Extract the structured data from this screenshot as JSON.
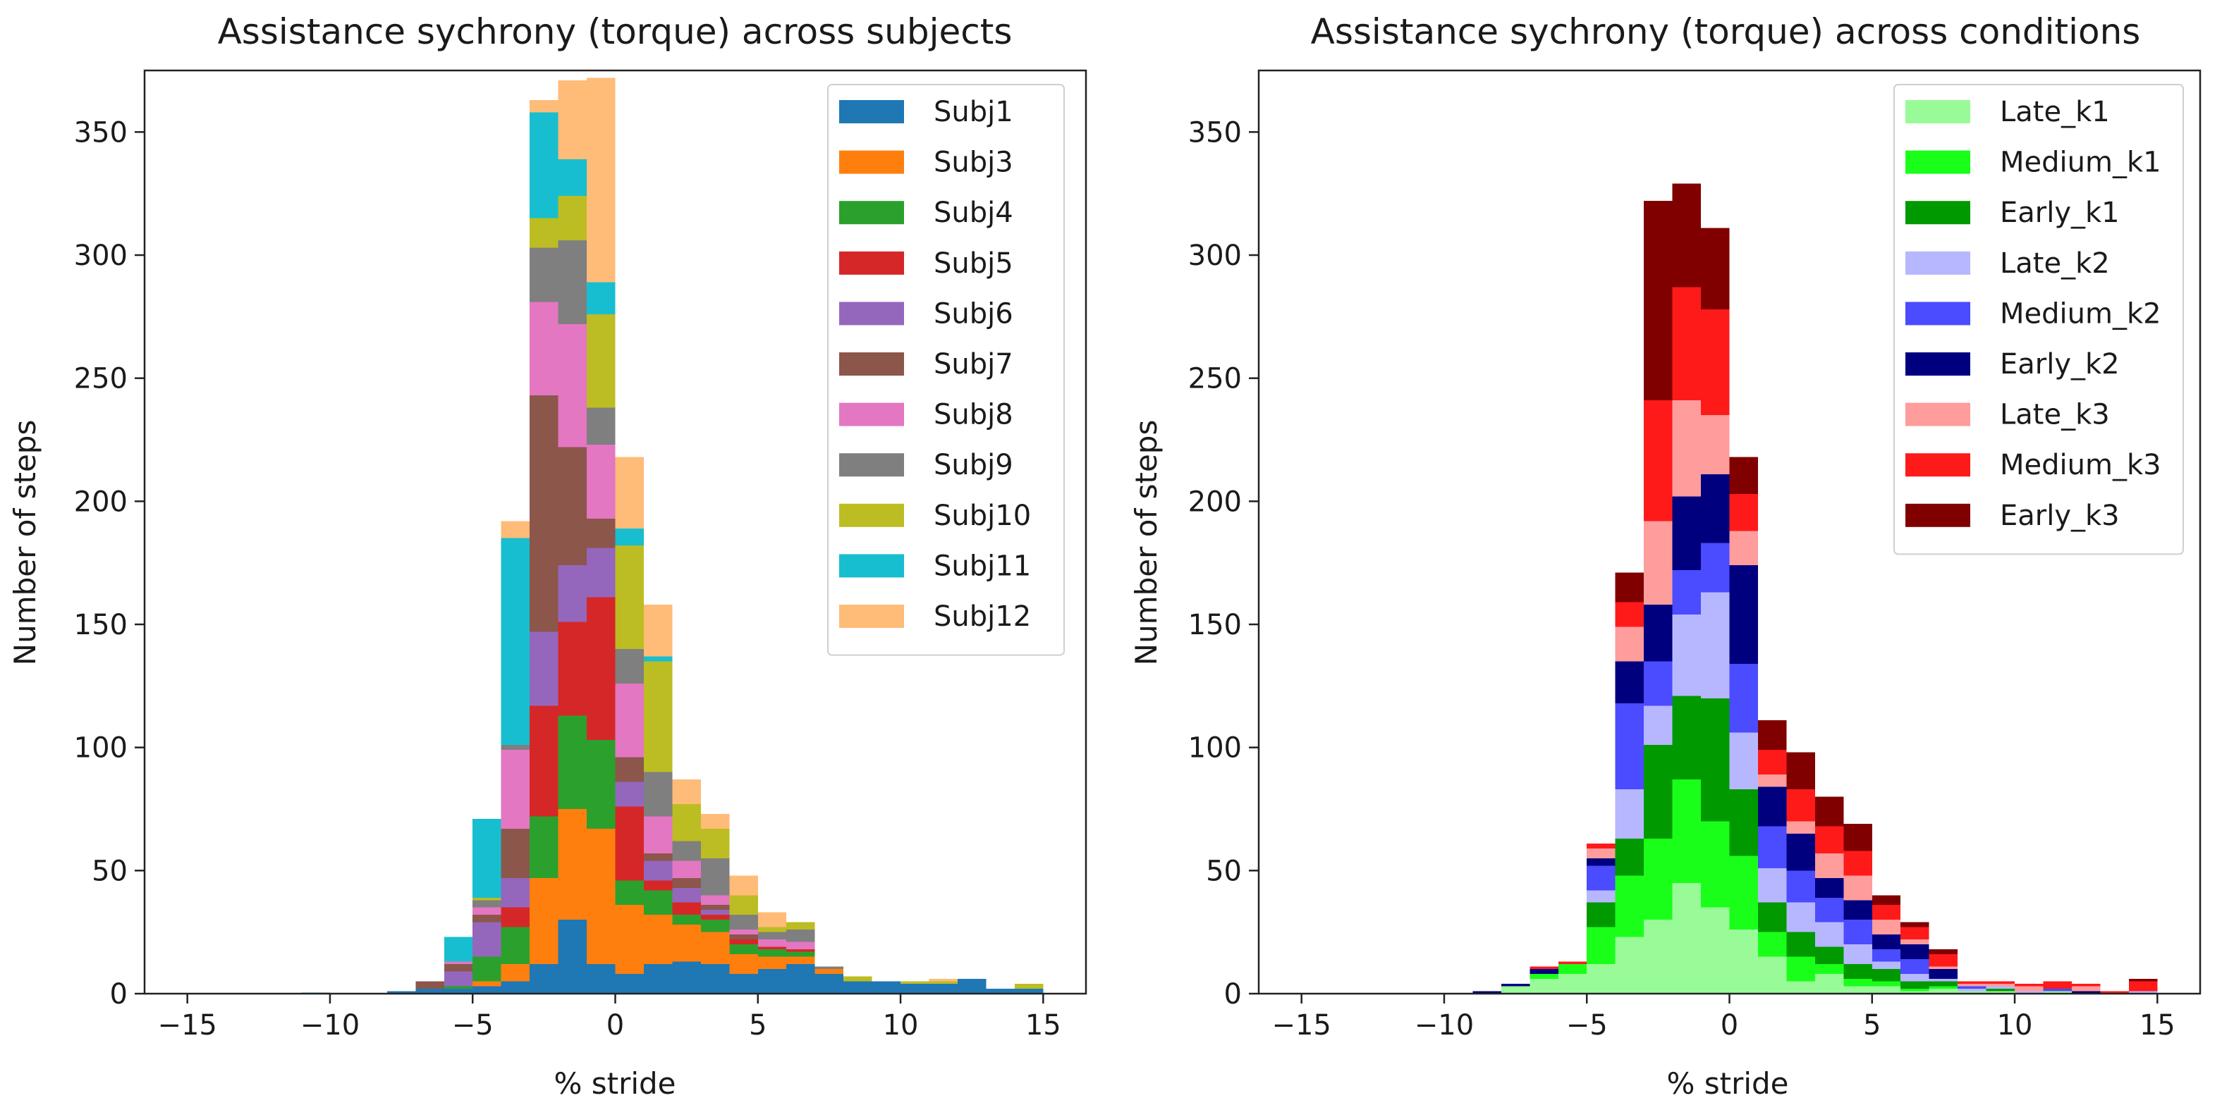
{
  "chart_data": [
    {
      "type": "bar",
      "stacked": true,
      "title": "Assistance sychrony (torque) across subjects",
      "xlabel": "% stride",
      "ylabel": "Number of steps",
      "xlim": [
        -16.5,
        16.5
      ],
      "ylim": [
        0,
        375
      ],
      "xticks": [
        -15,
        -10,
        -5,
        0,
        5,
        10,
        15
      ],
      "yticks": [
        0,
        50,
        100,
        150,
        200,
        250,
        300,
        350
      ],
      "legend_position": "top-right",
      "bin_width": 1,
      "bin_left_edges": [
        -15,
        -14,
        -13,
        -12,
        -11,
        -10,
        -9,
        -8,
        -7,
        -6,
        -5,
        -4,
        -3,
        -2,
        -1,
        0,
        1,
        2,
        3,
        4,
        5,
        6,
        7,
        8,
        9,
        10,
        11,
        12,
        13,
        14
      ],
      "series": [
        {
          "name": "Subj1",
          "color": "#1f77b4",
          "values": [
            0,
            0,
            0,
            0,
            0.5,
            0,
            0,
            1,
            2,
            2,
            3,
            5,
            12,
            30,
            12,
            8,
            12,
            13,
            12,
            8,
            10,
            12,
            8,
            5,
            5,
            4,
            4,
            6,
            2,
            2
          ]
        },
        {
          "name": "Subj3",
          "color": "#ff7f0e",
          "values": [
            0,
            0,
            0,
            0,
            0,
            0,
            0,
            0,
            0,
            0,
            2,
            7,
            35,
            45,
            55,
            28,
            20,
            15,
            13,
            8,
            5,
            3,
            2,
            0,
            0,
            0,
            0,
            0,
            0,
            0
          ]
        },
        {
          "name": "Subj4",
          "color": "#2ca02c",
          "values": [
            0,
            0,
            0,
            0,
            0,
            0,
            0,
            0,
            0,
            1,
            10,
            15,
            25,
            38,
            36,
            10,
            10,
            4,
            5,
            4,
            3,
            2,
            0,
            0,
            0,
            0,
            0,
            0,
            0,
            0
          ]
        },
        {
          "name": "Subj5",
          "color": "#d62728",
          "values": [
            0,
            0,
            0,
            0,
            0,
            0,
            0,
            0,
            0,
            0,
            0,
            8,
            45,
            38,
            58,
            30,
            4,
            5,
            2,
            2,
            1,
            1,
            0,
            0,
            0,
            0,
            0,
            0,
            0,
            0
          ]
        },
        {
          "name": "Subj6",
          "color": "#9467bd",
          "values": [
            0,
            0,
            0,
            0,
            0,
            0,
            0,
            0,
            0,
            6,
            14,
            12,
            30,
            23,
            20,
            10,
            8,
            6,
            2,
            0,
            0,
            0,
            0,
            0,
            0,
            0,
            0,
            0,
            0,
            0
          ]
        },
        {
          "name": "Subj7",
          "color": "#8c564b",
          "values": [
            0,
            0,
            0,
            0,
            0,
            0,
            0,
            0,
            3,
            3,
            3,
            20,
            96,
            48,
            12,
            10,
            3,
            4,
            2,
            2,
            0,
            0,
            0,
            0,
            0,
            0,
            0,
            0,
            0,
            0
          ]
        },
        {
          "name": "Subj8",
          "color": "#e377c2",
          "values": [
            0,
            0,
            0,
            0,
            0,
            0,
            0,
            0,
            0,
            1,
            3,
            32,
            38,
            50,
            30,
            30,
            15,
            7,
            4,
            2,
            3,
            3,
            0,
            0,
            0,
            0,
            0,
            0,
            0,
            0
          ]
        },
        {
          "name": "Subj9",
          "color": "#7f7f7f",
          "values": [
            0,
            0,
            0,
            0,
            0,
            0,
            0,
            0,
            0,
            0,
            3,
            2,
            22,
            34,
            15,
            14,
            18,
            8,
            15,
            6,
            3,
            5,
            1,
            0,
            0,
            0,
            0,
            0,
            0,
            0
          ]
        },
        {
          "name": "Subj10",
          "color": "#bcbd22",
          "values": [
            0,
            0,
            0,
            0,
            0,
            0,
            0,
            0,
            0,
            0,
            1,
            0,
            12,
            18,
            38,
            42,
            45,
            15,
            12,
            8,
            2,
            3,
            0,
            2,
            0,
            1,
            1,
            0,
            0,
            2
          ]
        },
        {
          "name": "Subj11",
          "color": "#17becf",
          "values": [
            0,
            0,
            0,
            0,
            0,
            0,
            0,
            0,
            0,
            10,
            32,
            84,
            43,
            15,
            13,
            7,
            2,
            0,
            0,
            0,
            0,
            0,
            0,
            0,
            0,
            0,
            0,
            0,
            0,
            0
          ]
        },
        {
          "name": "Subj12",
          "color": "#ffbb78",
          "values": [
            0,
            0,
            0,
            0,
            0,
            0,
            0,
            0,
            0,
            0,
            0,
            7,
            5,
            32,
            83,
            29,
            21,
            10,
            6,
            8,
            6,
            0,
            0,
            0,
            0,
            0,
            1,
            0,
            0,
            0
          ]
        }
      ]
    },
    {
      "type": "bar",
      "stacked": true,
      "title": "Assistance sychrony (torque) across conditions",
      "xlabel": "% stride",
      "ylabel": "Number of steps",
      "xlim": [
        -16.5,
        16.5
      ],
      "ylim": [
        0,
        375
      ],
      "xticks": [
        -15,
        -10,
        -5,
        0,
        5,
        10,
        15
      ],
      "yticks": [
        0,
        50,
        100,
        150,
        200,
        250,
        300,
        350
      ],
      "legend_position": "top-right",
      "bin_width": 1,
      "bin_left_edges": [
        -15,
        -14,
        -13,
        -12,
        -11,
        -10,
        -9,
        -8,
        -7,
        -6,
        -5,
        -4,
        -3,
        -2,
        -1,
        0,
        1,
        2,
        3,
        4,
        5,
        6,
        7,
        8,
        9,
        10,
        11,
        12,
        13,
        14
      ],
      "series": [
        {
          "name": "Late_k1",
          "color": "#98fb98",
          "values": [
            0,
            0,
            0,
            0,
            0,
            0,
            0,
            3,
            6,
            8,
            12,
            23,
            30,
            45,
            35,
            26,
            15,
            5,
            8,
            3,
            3,
            1,
            2,
            1,
            1,
            0,
            1,
            0,
            0,
            0
          ]
        },
        {
          "name": "Medium_k1",
          "color": "#1aff1a",
          "values": [
            0,
            0,
            0,
            0,
            0,
            0,
            0,
            0,
            2,
            4,
            15,
            25,
            33,
            42,
            35,
            30,
            10,
            10,
            4,
            3,
            2,
            1,
            1,
            0,
            0,
            0,
            0,
            0,
            0,
            0
          ]
        },
        {
          "name": "Early_k1",
          "color": "#009900",
          "values": [
            0,
            0,
            0,
            0,
            0,
            0,
            0,
            0,
            0,
            0,
            10,
            15,
            38,
            34,
            50,
            27,
            12,
            10,
            7,
            6,
            5,
            3,
            2,
            0,
            1,
            0,
            0,
            0,
            0,
            0
          ]
        },
        {
          "name": "Late_k2",
          "color": "#b7b7ff",
          "values": [
            0,
            0,
            0,
            0,
            0,
            0,
            0,
            0,
            0,
            0,
            5,
            20,
            16,
            33,
            43,
            23,
            14,
            12,
            10,
            8,
            3,
            3,
            1,
            1,
            1,
            1,
            0,
            0,
            0,
            1
          ]
        },
        {
          "name": "Medium_k2",
          "color": "#4b4bff",
          "values": [
            0,
            0,
            0,
            0,
            0,
            0,
            0,
            0,
            0,
            0,
            10,
            35,
            18,
            18,
            20,
            28,
            17,
            13,
            10,
            10,
            5,
            6,
            0,
            1,
            0,
            0,
            1,
            0,
            0,
            0
          ]
        },
        {
          "name": "Early_k2",
          "color": "#00007f",
          "values": [
            0,
            0,
            0,
            0,
            0,
            0,
            1,
            1,
            2,
            0,
            3,
            17,
            23,
            30,
            28,
            40,
            16,
            15,
            8,
            8,
            6,
            6,
            4,
            0,
            0,
            0,
            0,
            1,
            0,
            0
          ]
        },
        {
          "name": "Late_k3",
          "color": "#ff9c9c",
          "values": [
            0,
            0,
            0,
            0,
            0,
            0,
            0,
            0,
            0,
            0,
            4,
            14,
            34,
            39,
            24,
            14,
            5,
            5,
            10,
            10,
            6,
            2,
            1,
            1,
            1,
            2,
            0,
            2,
            0,
            0
          ]
        },
        {
          "name": "Medium_k3",
          "color": "#ff1a1a",
          "values": [
            0,
            0,
            0,
            0,
            0,
            0,
            0,
            0,
            1,
            1,
            2,
            10,
            49,
            46,
            43,
            15,
            10,
            13,
            11,
            10,
            6,
            5,
            5,
            1,
            1,
            1,
            3,
            1,
            1,
            4
          ]
        },
        {
          "name": "Early_k3",
          "color": "#800000",
          "values": [
            0,
            0,
            0,
            0,
            0,
            0,
            0,
            0,
            0,
            0,
            0,
            12,
            81,
            42,
            33,
            15,
            12,
            15,
            12,
            11,
            4,
            2,
            2,
            0,
            0,
            0,
            0,
            0,
            0,
            1
          ]
        }
      ]
    }
  ]
}
